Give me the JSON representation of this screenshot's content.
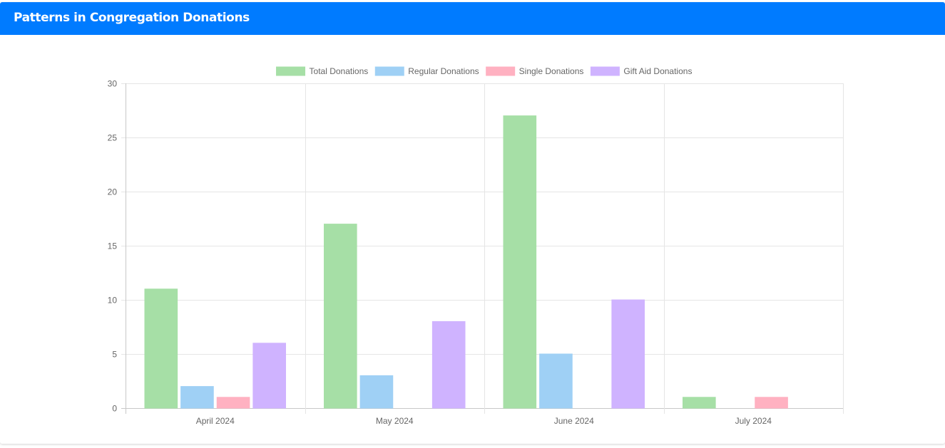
{
  "header": {
    "title": "Patterns in Congregation Donations",
    "color": "#007bff"
  },
  "chart_data": {
    "type": "bar",
    "categories": [
      "April 2024",
      "May 2024",
      "June 2024",
      "July 2024"
    ],
    "series": [
      {
        "name": "Total Donations",
        "values": [
          11,
          17,
          27,
          1
        ],
        "color": "#a6dfa6",
        "border": "#a6dfa6"
      },
      {
        "name": "Regular Donations",
        "values": [
          2,
          3,
          5,
          0
        ],
        "color": "#9fd0f5",
        "border": "#9fd0f5"
      },
      {
        "name": "Single Donations",
        "values": [
          1,
          0,
          0,
          1
        ],
        "color": "#ffb1c1",
        "border": "#ffb1c1"
      },
      {
        "name": "Gift Aid Donations",
        "values": [
          6,
          8,
          10,
          0
        ],
        "color": "#cfb3ff",
        "border": "#cfb3ff"
      }
    ],
    "ylim": [
      0,
      30
    ],
    "yticks": [
      0,
      5,
      10,
      15,
      20,
      25,
      30
    ],
    "grid": true,
    "legend_position": "top"
  }
}
